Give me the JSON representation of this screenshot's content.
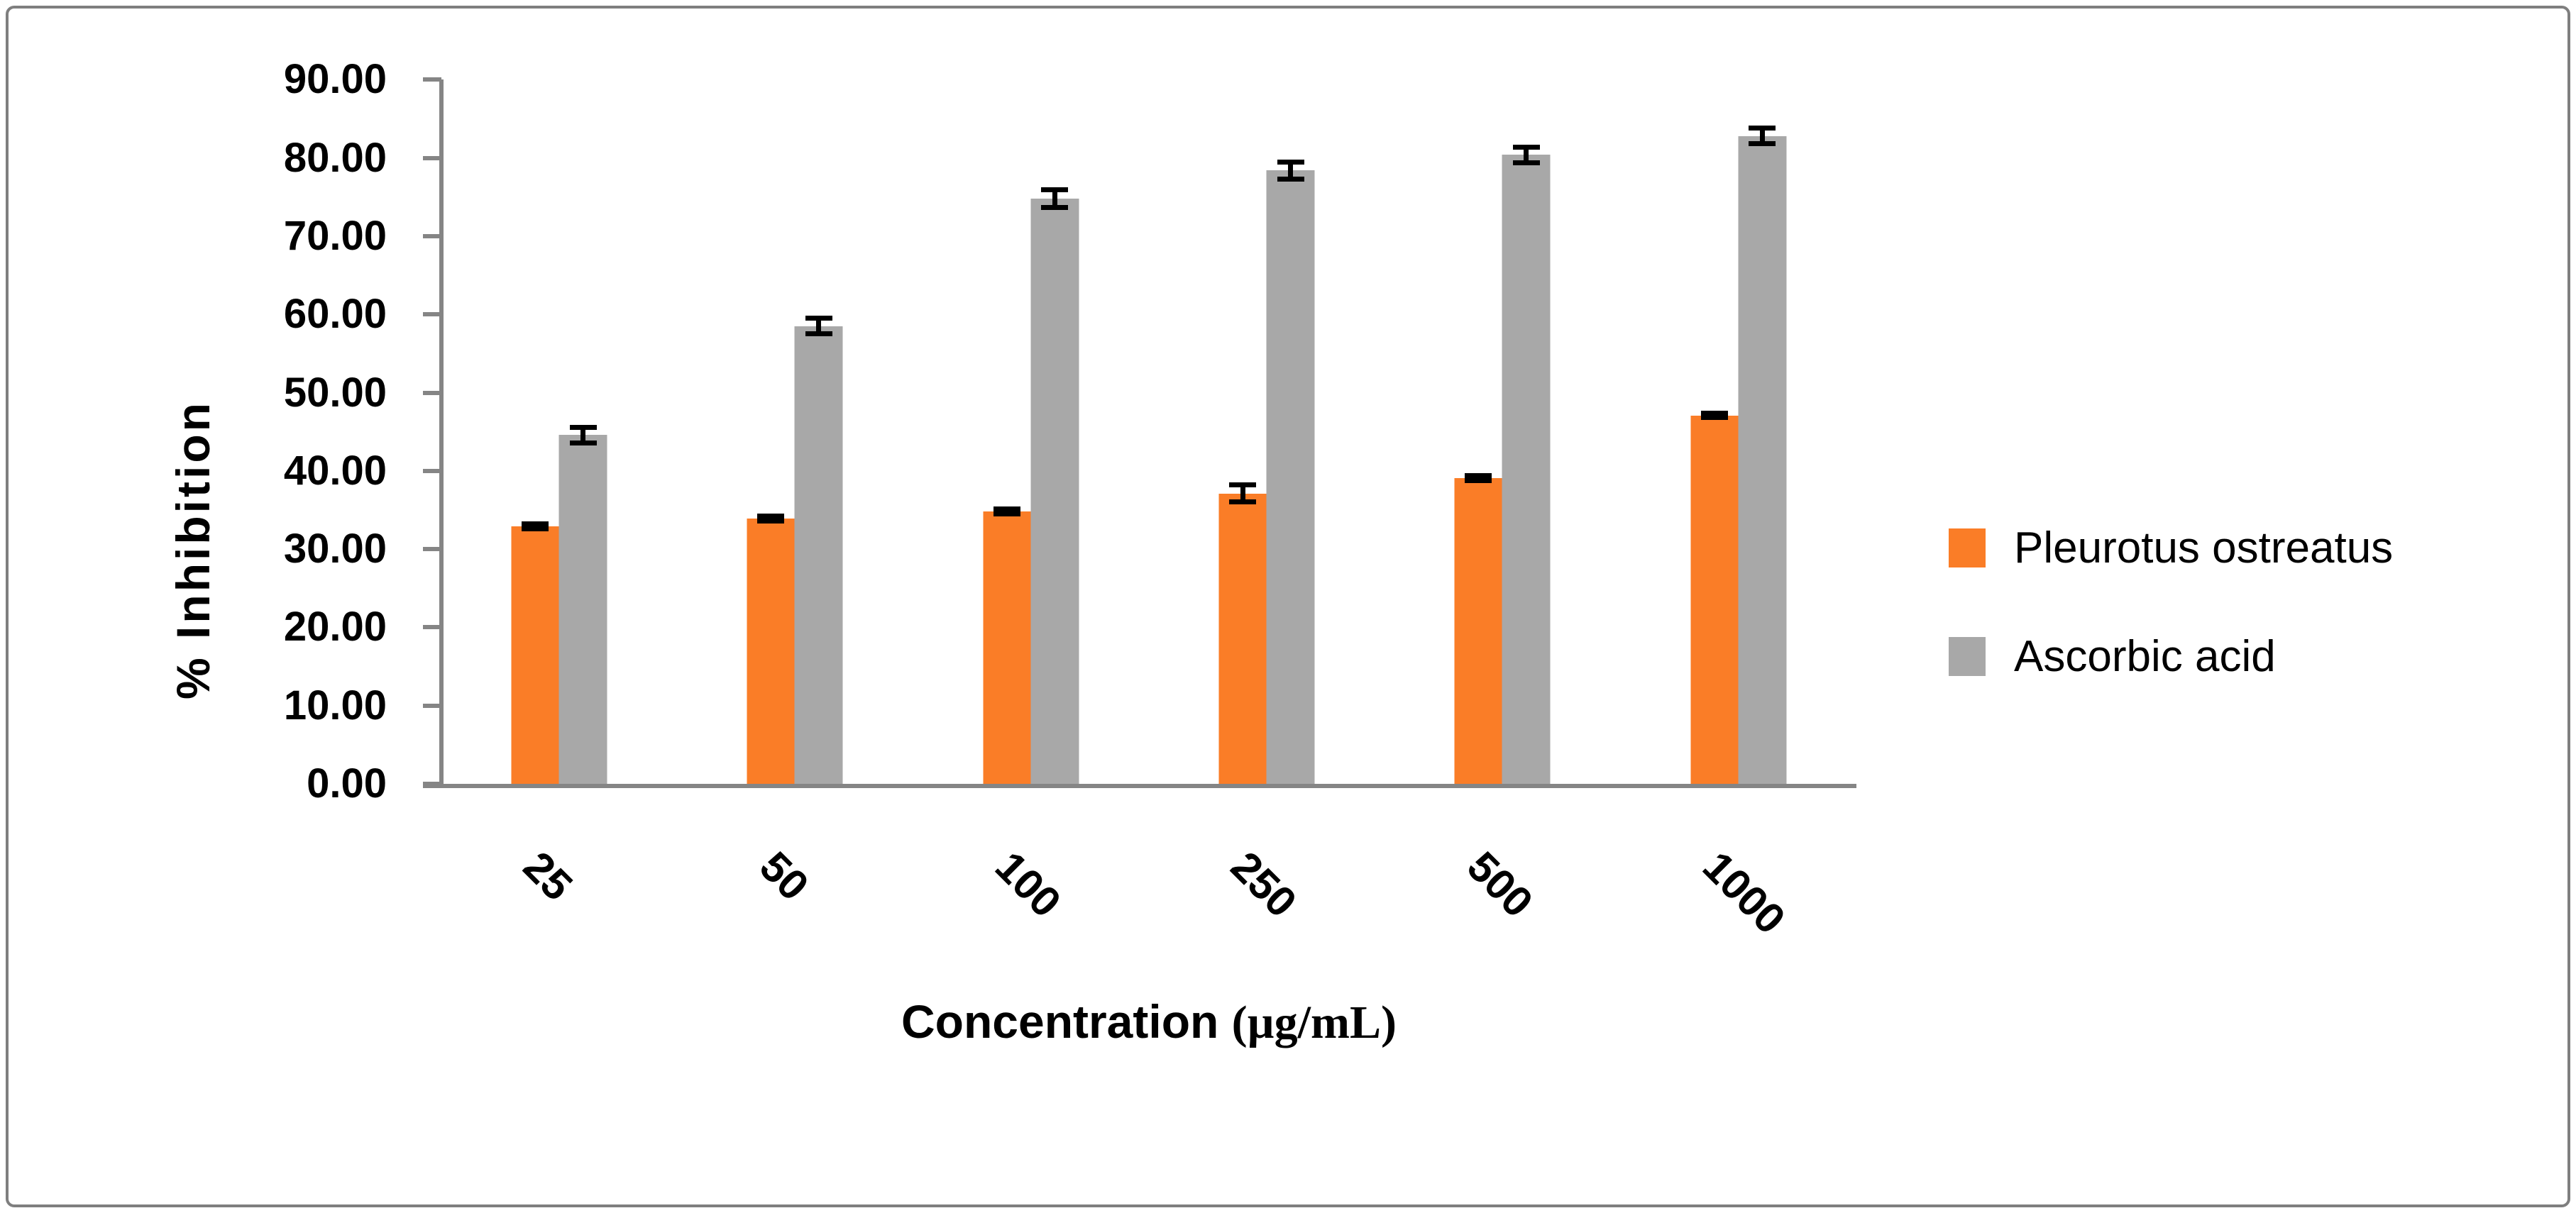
{
  "chart_data": {
    "type": "bar",
    "title": "",
    "categories": [
      "25",
      "50",
      "100",
      "250",
      "500",
      "1000"
    ],
    "series": [
      {
        "name": "Pleurotus ostreatus",
        "color": "#FA7D27",
        "values": [
          32.9,
          33.9,
          34.8,
          37.1,
          39.1,
          47.1
        ],
        "errors": [
          0.3,
          0.3,
          0.3,
          1.1,
          0.3,
          0.3
        ]
      },
      {
        "name": "Ascorbic acid",
        "color": "#A8A8A8",
        "values": [
          44.6,
          58.5,
          74.8,
          78.4,
          80.4,
          82.8
        ],
        "errors": [
          1.0,
          1.0,
          1.1,
          1.1,
          1.0,
          1.0
        ]
      }
    ],
    "xlabel_main": "Concentration ",
    "xlabel_unit": "(µg/mL)",
    "ylabel": "% Inhibition",
    "ylim": [
      0,
      90
    ],
    "ytick_step": 10,
    "ytick_labels": [
      "0.00",
      "10.00",
      "20.00",
      "30.00",
      "40.00",
      "50.00",
      "60.00",
      "70.00",
      "80.00",
      "90.00"
    ],
    "grid": false,
    "legend_position": "right",
    "error_bar_color": "#000000",
    "axis_color": "#858585",
    "frame_border_color": "#7F7F7F"
  }
}
